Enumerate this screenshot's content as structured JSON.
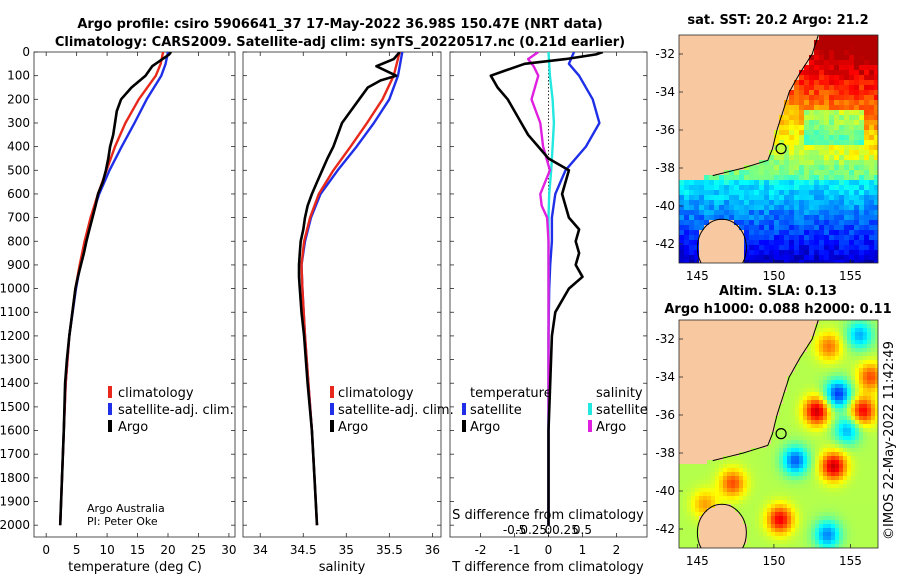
{
  "title_line1": "Argo profile: csiro 5906641_37 17-May-2022 36.98S 150.47E (NRT data)",
  "title_line2": "Climatology: CARS2009. Satellite-adj clim: synTS_20220517.nc (0.21d earlier)",
  "colors": {
    "argo": "#000000",
    "climatology": "#e8281a",
    "satellite": "#1f2fe8",
    "sst_sat": "#22e8e0",
    "diff_argo": "#e020e0",
    "land": "#f8c8a0",
    "coast": "#000000"
  },
  "depth_axis": {
    "ticks": [
      0,
      100,
      200,
      300,
      400,
      500,
      600,
      700,
      800,
      900,
      1000,
      1100,
      1200,
      1300,
      1400,
      1500,
      1600,
      1700,
      1800,
      1900,
      2000
    ],
    "range": [
      0,
      2050
    ]
  },
  "chart_data": [
    {
      "type": "line",
      "name": "temperature-profile",
      "xlabel": "temperature (deg C)",
      "xlim": [
        -2,
        31
      ],
      "xticks": [
        0,
        5,
        10,
        15,
        20,
        25,
        30
      ],
      "legend": [
        "climatology",
        "satellite-adj. clim.",
        "Argo"
      ],
      "annotation": [
        "Argo Australia",
        "PI: Peter Oke"
      ],
      "series": [
        {
          "name": "climatology",
          "depth": [
            0,
            50,
            100,
            200,
            300,
            400,
            500,
            600,
            700,
            800,
            900,
            1000,
            1200,
            1400,
            1600,
            1800,
            2000
          ],
          "values": [
            19.2,
            18.8,
            18.0,
            15.2,
            13.0,
            11.3,
            9.9,
            8.5,
            7.3,
            6.3,
            5.5,
            4.8,
            3.8,
            3.2,
            2.9,
            2.6,
            2.3
          ]
        },
        {
          "name": "satellite-adj. clim.",
          "depth": [
            0,
            50,
            100,
            200,
            300,
            400,
            500,
            600,
            700,
            800,
            900,
            1000,
            1200,
            1400,
            1600,
            1800,
            2000
          ],
          "values": [
            20.0,
            19.6,
            18.9,
            16.5,
            14.5,
            12.4,
            10.4,
            8.7,
            7.4,
            6.4,
            5.6,
            4.9,
            3.8,
            3.2,
            2.9,
            2.6,
            2.3
          ]
        },
        {
          "name": "Argo",
          "depth": [
            0,
            10,
            30,
            60,
            100,
            150,
            200,
            250,
            300,
            350,
            400,
            450,
            500,
            550,
            600,
            650,
            700,
            750,
            800,
            850,
            900,
            950,
            1000,
            1100,
            1200,
            1300,
            1400,
            1600,
            1800,
            2000
          ],
          "values": [
            20.5,
            20.2,
            19.1,
            17.4,
            16.3,
            14.0,
            12.3,
            11.6,
            11.3,
            11.0,
            10.5,
            10.2,
            9.8,
            9.3,
            8.5,
            8.1,
            7.6,
            7.1,
            6.6,
            6.2,
            5.7,
            5.2,
            4.8,
            4.3,
            3.8,
            3.4,
            3.1,
            2.9,
            2.6,
            2.3
          ]
        }
      ]
    },
    {
      "type": "line",
      "name": "salinity-profile",
      "xlabel": "salinity",
      "xlim": [
        33.8,
        36.1
      ],
      "xticks": [
        34,
        34.5,
        35,
        35.5,
        36
      ],
      "legend": [
        "climatology",
        "satellite-adj. clim.",
        "Argo"
      ],
      "series": [
        {
          "name": "climatology",
          "depth": [
            0,
            100,
            200,
            300,
            400,
            500,
            600,
            700,
            800,
            900,
            1000,
            1200,
            1400,
            1600,
            1800,
            2000
          ],
          "values": [
            35.62,
            35.55,
            35.42,
            35.24,
            35.05,
            34.85,
            34.68,
            34.58,
            34.51,
            34.48,
            34.49,
            34.52,
            34.56,
            34.6,
            34.63,
            34.66
          ]
        },
        {
          "name": "satellite-adj. clim.",
          "depth": [
            0,
            100,
            200,
            300,
            400,
            500,
            600,
            700,
            800,
            900,
            1000,
            1200,
            1400,
            1600,
            1800,
            2000
          ],
          "values": [
            35.65,
            35.6,
            35.5,
            35.32,
            35.12,
            34.9,
            34.7,
            34.59,
            34.52,
            34.48,
            34.49,
            34.52,
            34.56,
            34.6,
            34.63,
            34.66
          ]
        },
        {
          "name": "Argo",
          "depth": [
            0,
            30,
            60,
            100,
            120,
            150,
            200,
            250,
            300,
            350,
            400,
            450,
            500,
            550,
            600,
            650,
            700,
            750,
            800,
            850,
            900,
            950,
            1000,
            1100,
            1200,
            1400,
            1600,
            1800,
            2000
          ],
          "values": [
            35.62,
            35.55,
            35.35,
            35.58,
            35.4,
            35.25,
            35.15,
            35.05,
            34.95,
            34.9,
            34.85,
            34.78,
            34.72,
            34.66,
            34.6,
            34.55,
            34.52,
            34.5,
            34.47,
            34.46,
            34.45,
            34.45,
            34.46,
            34.48,
            34.51,
            34.55,
            34.6,
            34.63,
            34.66
          ]
        }
      ]
    },
    {
      "type": "line",
      "name": "difference-profile",
      "xlabel": "T difference from climatology",
      "xlim": [
        -2.9,
        2.9
      ],
      "xticks": [
        -2,
        -1,
        0,
        1,
        2
      ],
      "xlabel_top": "S difference from climatology",
      "xticks_top": [
        "-0.5",
        "-0.25",
        "0",
        "0.25",
        "0.5"
      ],
      "legend_left": {
        "heading": "temperature",
        "items": [
          "satellite",
          "Argo"
        ]
      },
      "legend_right": {
        "heading": "salinity",
        "items": [
          "satellite",
          "Argo"
        ]
      },
      "series": [
        {
          "name": "temperature satellite",
          "depth": [
            0,
            50,
            100,
            200,
            300,
            400,
            500,
            600,
            700,
            800,
            900,
            1000,
            1200,
            1500,
            2000
          ],
          "values": [
            0.75,
            0.6,
            0.9,
            1.3,
            1.5,
            1.1,
            0.5,
            0.2,
            0.1,
            0.1,
            0.05,
            0.02,
            0.0,
            0.0,
            0.0
          ]
        },
        {
          "name": "temperature Argo",
          "depth": [
            0,
            10,
            30,
            50,
            80,
            100,
            150,
            200,
            250,
            300,
            350,
            400,
            450,
            500,
            550,
            600,
            650,
            700,
            750,
            800,
            850,
            900,
            950,
            1000,
            1100,
            1200,
            1400,
            1600,
            1800,
            2000
          ],
          "values": [
            1.6,
            1.4,
            0.5,
            -0.7,
            -1.3,
            -1.7,
            -1.5,
            -1.2,
            -1.0,
            -0.8,
            -0.6,
            -0.3,
            0.0,
            0.6,
            0.5,
            0.4,
            0.5,
            0.6,
            0.9,
            0.8,
            0.9,
            0.8,
            1.0,
            0.6,
            0.2,
            0.1,
            0.05,
            0.0,
            0.0,
            0.0
          ]
        },
        {
          "name": "salinity satellite",
          "depth": [
            0,
            100,
            200,
            300,
            400,
            500,
            600,
            700,
            800,
            1000,
            1200,
            1500,
            2000
          ],
          "values": [
            0.0,
            0.02,
            0.06,
            0.08,
            0.06,
            0.04,
            0.01,
            0.0,
            0.0,
            0.0,
            0.0,
            0.0,
            0.0
          ]
        },
        {
          "name": "salinity Argo",
          "depth": [
            0,
            30,
            60,
            100,
            150,
            200,
            300,
            400,
            500,
            600,
            650,
            700,
            800,
            900,
            1000,
            1200,
            1500,
            2000
          ],
          "values": [
            -0.15,
            -0.3,
            -0.22,
            -0.15,
            -0.2,
            -0.25,
            -0.12,
            -0.08,
            0.02,
            -0.12,
            -0.1,
            -0.02,
            0.0,
            0.0,
            0.0,
            0.0,
            0.0,
            0.0
          ]
        }
      ]
    },
    {
      "type": "heatmap",
      "name": "sst-map",
      "title": "sat. SST: 20.2 Argo: 21.2",
      "xlim": [
        143.8,
        156.8
      ],
      "ylim": [
        -43,
        -31
      ],
      "xticks": [
        145,
        150,
        155
      ],
      "yticks": [
        -32,
        -34,
        -36,
        -38,
        -40,
        -42
      ],
      "argo_position": [
        150.47,
        -36.98
      ]
    },
    {
      "type": "heatmap",
      "name": "sla-map",
      "title_line1": "Altim. SLA: 0.13",
      "title_line2": "Argo h1000: 0.088 h2000: 0.11",
      "xlim": [
        143.8,
        156.8
      ],
      "ylim": [
        -43,
        -31
      ],
      "xticks": [
        145,
        150,
        155
      ],
      "yticks": [
        -32,
        -34,
        -36,
        -38,
        -40,
        -42
      ],
      "argo_position": [
        150.47,
        -36.98
      ]
    }
  ],
  "copyright": "©IMOS 22-May-2022 11:42:49"
}
